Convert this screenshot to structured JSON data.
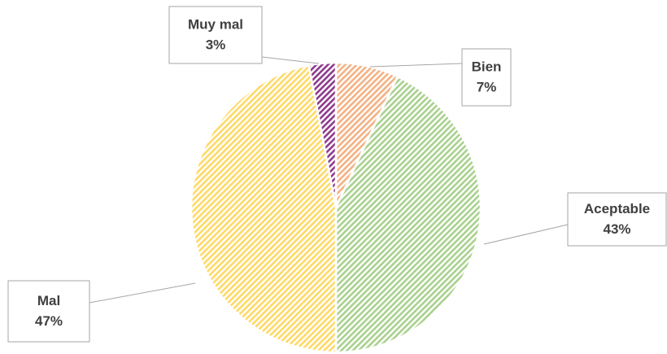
{
  "chart_data": {
    "type": "pie",
    "categories": [
      "Bien",
      "Aceptable",
      "Mal",
      "Muy mal"
    ],
    "values": [
      7,
      43,
      47,
      3
    ],
    "value_labels": [
      "7%",
      "43%",
      "47%",
      "3%"
    ],
    "colors": [
      "#f4b183",
      "#a9d18e",
      "#ffd966",
      "#8e3a8e"
    ]
  }
}
